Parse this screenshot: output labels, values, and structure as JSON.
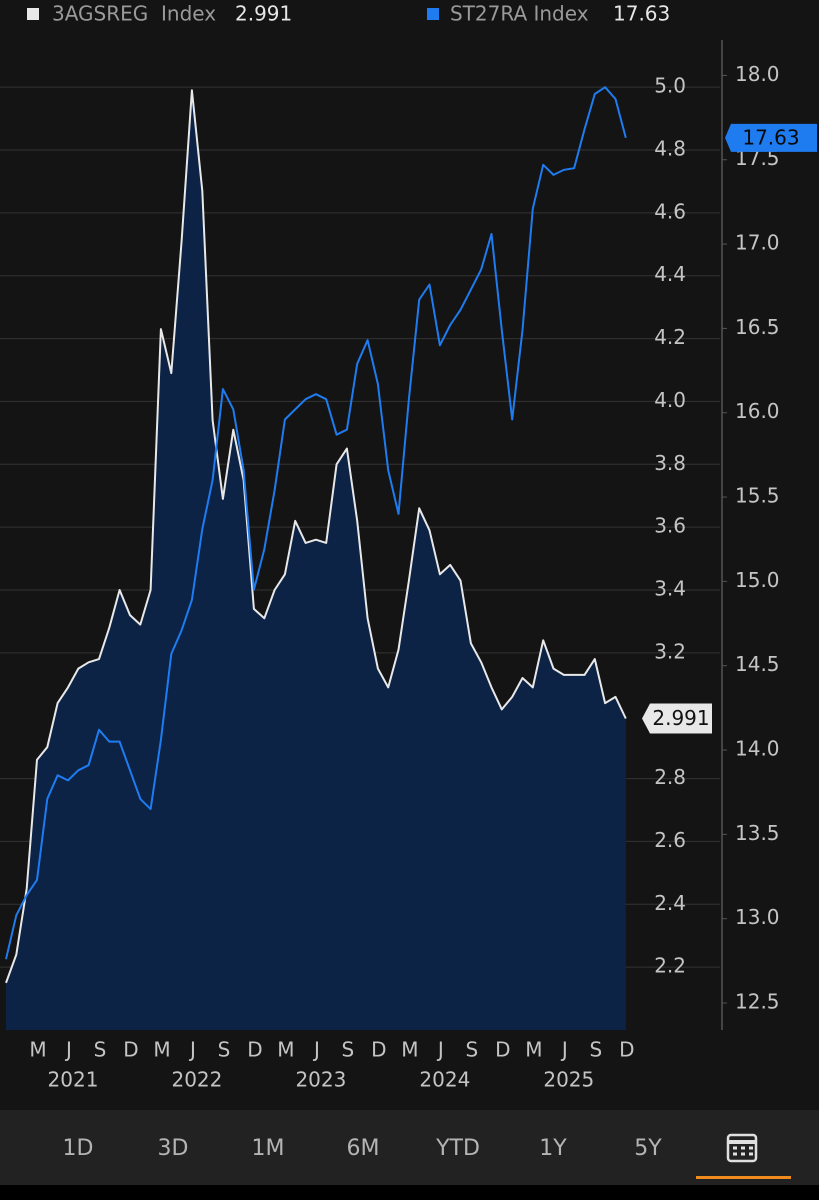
{
  "chart_data": {
    "type": "line",
    "x": [
      "2020-12",
      "2021-01",
      "2021-02",
      "2021-03",
      "2021-04",
      "2021-05",
      "2021-06",
      "2021-07",
      "2021-08",
      "2021-09",
      "2021-10",
      "2021-11",
      "2021-12",
      "2022-01",
      "2022-02",
      "2022-03",
      "2022-04",
      "2022-05",
      "2022-06",
      "2022-07",
      "2022-08",
      "2022-09",
      "2022-10",
      "2022-11",
      "2022-12",
      "2023-01",
      "2023-02",
      "2023-03",
      "2023-04",
      "2023-05",
      "2023-06",
      "2023-07",
      "2023-08",
      "2023-09",
      "2023-10",
      "2023-11",
      "2023-12",
      "2024-01",
      "2024-02",
      "2024-03",
      "2024-04",
      "2024-05",
      "2024-06",
      "2024-07",
      "2024-08",
      "2024-09",
      "2024-10",
      "2024-11",
      "2024-12",
      "2025-01",
      "2025-02",
      "2025-03",
      "2025-04",
      "2025-05",
      "2025-06",
      "2025-07",
      "2025-08",
      "2025-09",
      "2025-10",
      "2025-11",
      "2025-12"
    ],
    "series": [
      {
        "name": "3AGSREG  Index",
        "color": "#e8e8e8",
        "fill": "#0c2346",
        "axis": "y",
        "values": [
          2.15,
          2.24,
          2.45,
          2.86,
          2.9,
          3.04,
          3.09,
          3.15,
          3.17,
          3.18,
          3.28,
          3.4,
          3.32,
          3.29,
          3.4,
          4.23,
          4.09,
          4.51,
          4.99,
          4.67,
          3.94,
          3.69,
          3.91,
          3.75,
          3.34,
          3.31,
          3.4,
          3.45,
          3.62,
          3.55,
          3.56,
          3.55,
          3.8,
          3.85,
          3.62,
          3.31,
          3.15,
          3.09,
          3.21,
          3.43,
          3.66,
          3.59,
          3.45,
          3.48,
          3.43,
          3.23,
          3.17,
          3.09,
          3.02,
          3.06,
          3.12,
          3.09,
          3.24,
          3.15,
          3.13,
          3.13,
          3.13,
          3.18,
          3.04,
          3.06,
          2.991
        ]
      },
      {
        "name": "ST27RA Index",
        "color": "#1f7cf0",
        "axis": "y2",
        "values": [
          12.76,
          13.02,
          13.14,
          13.23,
          13.71,
          13.85,
          13.82,
          13.88,
          13.91,
          14.12,
          14.05,
          14.05,
          13.88,
          13.71,
          13.65,
          14.06,
          14.57,
          14.71,
          14.89,
          15.31,
          15.6,
          16.14,
          16.02,
          15.66,
          14.95,
          15.19,
          15.54,
          15.96,
          16.02,
          16.08,
          16.11,
          16.08,
          15.87,
          15.9,
          16.29,
          16.43,
          16.17,
          15.66,
          15.4,
          16.08,
          16.67,
          16.76,
          16.4,
          16.52,
          16.61,
          16.73,
          16.85,
          17.06,
          16.49,
          15.96,
          16.49,
          17.21,
          17.47,
          17.41,
          17.44,
          17.45,
          17.68,
          17.89,
          17.93,
          17.86,
          17.63
        ]
      }
    ],
    "ylim": [
      2.0,
      5.15
    ],
    "yticks": [
      2.2,
      2.4,
      2.6,
      2.8,
      3.2,
      3.4,
      3.6,
      3.8,
      {
        "value": 4.0,
        "label": "4.0"
      },
      4.2,
      4.4,
      4.6,
      4.8,
      {
        "value": 5.0,
        "label": "5.0"
      }
    ],
    "y2lim": [
      12.34,
      18.21
    ],
    "y2ticks": [
      12.5,
      {
        "value": 13.0,
        "label": "13.0"
      },
      13.5,
      {
        "value": 14.0,
        "label": "14.0"
      },
      14.5,
      {
        "value": 15.0,
        "label": "15.0"
      },
      15.5,
      {
        "value": 16.0,
        "label": "16.0"
      },
      16.5,
      {
        "value": 17.0,
        "label": "17.0"
      },
      17.5,
      {
        "value": 18.0,
        "label": "18.0"
      }
    ],
    "xticks": [
      {
        "value": "2021-03",
        "label": "M"
      },
      {
        "value": "2021-06",
        "label": "J"
      },
      {
        "value": "2021-09",
        "label": "S"
      },
      {
        "value": "2021-12",
        "label": "D"
      },
      {
        "value": "2022-03",
        "label": "M"
      },
      {
        "value": "2022-06",
        "label": "J"
      },
      {
        "value": "2022-09",
        "label": "S"
      },
      {
        "value": "2022-12",
        "label": "D"
      },
      {
        "value": "2023-03",
        "label": "M"
      },
      {
        "value": "2023-06",
        "label": "J"
      },
      {
        "value": "2023-09",
        "label": "S"
      },
      {
        "value": "2023-12",
        "label": "D"
      },
      {
        "value": "2024-03",
        "label": "M"
      },
      {
        "value": "2024-06",
        "label": "J"
      },
      {
        "value": "2024-09",
        "label": "S"
      },
      {
        "value": "2024-12",
        "label": "D"
      },
      {
        "value": "2025-03",
        "label": "M"
      },
      {
        "value": "2025-06",
        "label": "J"
      },
      {
        "value": "2025-09",
        "label": "S"
      },
      {
        "value": "2025-12",
        "label": "D"
      }
    ],
    "x_year_labels": [
      {
        "value": "2021-06",
        "label": "2021"
      },
      {
        "value": "2022-06",
        "label": "2022"
      },
      {
        "value": "2023-06",
        "label": "2023"
      },
      {
        "value": "2024-06",
        "label": "2024"
      },
      {
        "value": "2025-06",
        "label": "2025"
      }
    ],
    "grid": true
  },
  "toolbar": {
    "buttons": [
      "1D",
      "3D",
      "1M",
      "6M",
      "YTD",
      "1Y",
      "5Y"
    ]
  }
}
